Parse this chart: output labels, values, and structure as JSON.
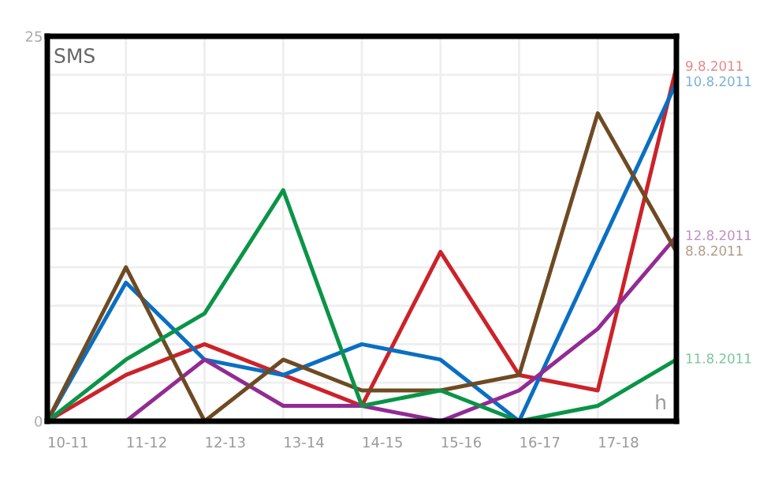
{
  "chart_data": {
    "type": "line",
    "title": "SMS",
    "xlabel": "h",
    "categories": [
      "10-11",
      "11-12",
      "12-13",
      "13-14",
      "14-15",
      "15-16",
      "16-17",
      "17-18",
      null
    ],
    "ylim": [
      0,
      25
    ],
    "yticks": [
      0,
      {
        "value": 2.5,
        "label": null
      },
      {
        "value": 5,
        "label": null
      },
      {
        "value": 7.5,
        "label": null
      },
      {
        "value": 10,
        "label": null
      },
      {
        "value": 12.5,
        "label": null
      },
      {
        "value": 15,
        "label": null
      },
      {
        "value": 17.5,
        "label": null
      },
      {
        "value": 20,
        "label": null
      },
      {
        "value": 22.5,
        "label": null
      },
      25
    ],
    "grid": true,
    "legend": false,
    "marker": "none",
    "line_style": "solid",
    "series": [
      {
        "name": "9.8.2011",
        "color": "#cc2229",
        "values": [
          0,
          3,
          5,
          3,
          1,
          11,
          3,
          2,
          23
        ]
      },
      {
        "name": "10.8.2011",
        "color": "#0a6fc2",
        "values": [
          0,
          9,
          4,
          3,
          5,
          4,
          0,
          11,
          22
        ]
      },
      {
        "name": "12.8.2011",
        "color": "#922b93",
        "values": [
          null,
          0,
          4,
          1,
          1,
          0,
          2,
          6,
          12
        ]
      },
      {
        "name": "8.8.2011",
        "color": "#6e4a23",
        "values": [
          0,
          10,
          0,
          4,
          2,
          2,
          3,
          20,
          11
        ]
      },
      {
        "name": "11.8.2011",
        "color": "#0a9447",
        "values": [
          0,
          4,
          7,
          15,
          1,
          2,
          0,
          1,
          4
        ]
      }
    ]
  }
}
